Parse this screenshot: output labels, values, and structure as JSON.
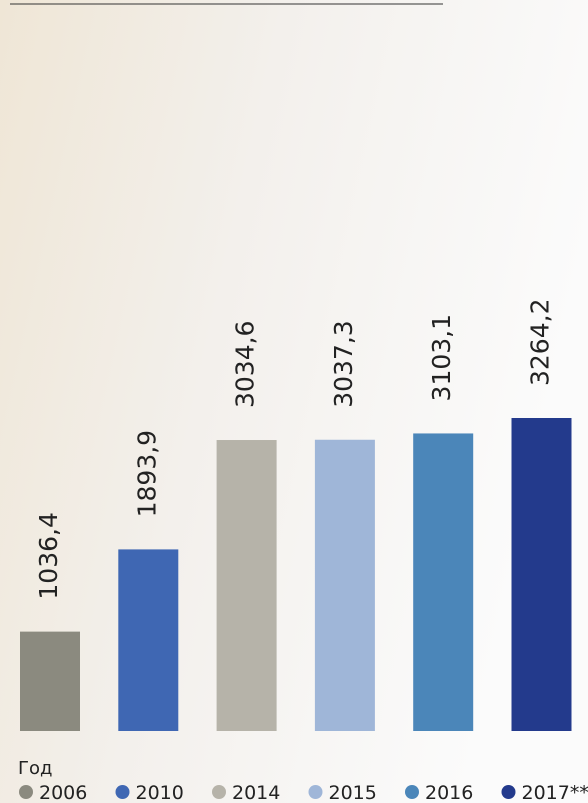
{
  "chart_data": {
    "type": "bar",
    "categories": [
      "2006",
      "2010",
      "2014",
      "2015",
      "2016",
      "2017**"
    ],
    "values": [
      1036.4,
      1893.9,
      3034.6,
      3037.3,
      3103.1,
      3264.2
    ],
    "value_labels": [
      "1036,4",
      "1893,9",
      "3034,6",
      "3037,3",
      "3103,1",
      "3264,2"
    ],
    "colors": [
      "#8b8a7f",
      "#3f67b3",
      "#b6b3a9",
      "#9fb6d8",
      "#4b86b9",
      "#233a8c"
    ],
    "legend_title": "Год"
  }
}
